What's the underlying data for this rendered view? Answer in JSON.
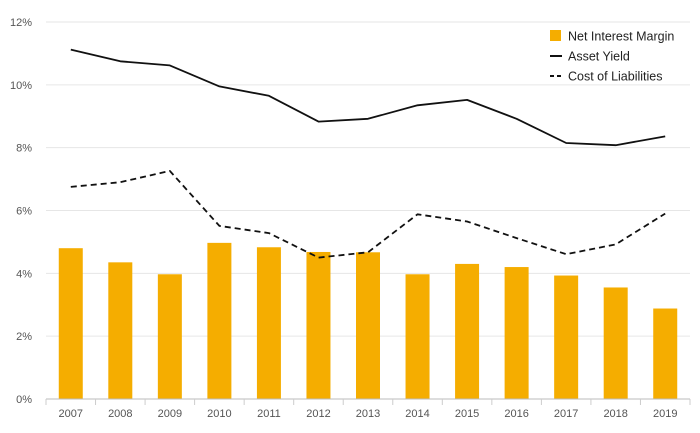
{
  "chart_data": {
    "type": "bar",
    "title": "",
    "xlabel": "",
    "ylabel": "",
    "categories": [
      "2007",
      "2008",
      "2009",
      "2010",
      "2011",
      "2012",
      "2013",
      "2014",
      "2015",
      "2016",
      "2017",
      "2018",
      "2019"
    ],
    "ylim": [
      0,
      12
    ],
    "yticks": [
      0,
      2,
      4,
      6,
      8,
      10,
      12
    ],
    "ytick_labels": [
      "0%",
      "2%",
      "4%",
      "6%",
      "8%",
      "10%",
      "12%"
    ],
    "grid": true,
    "legend_position": "top-right",
    "series": [
      {
        "name": "Net Interest Margin",
        "kind": "bar",
        "color": "#F5AD00",
        "values": [
          4.8,
          4.35,
          3.97,
          4.97,
          4.83,
          4.68,
          4.67,
          3.97,
          4.3,
          4.2,
          3.93,
          3.55,
          2.88
        ]
      },
      {
        "name": "Asset Yield",
        "kind": "line",
        "style": "solid",
        "color": "#111111",
        "values": [
          11.12,
          10.75,
          10.62,
          9.95,
          9.65,
          8.83,
          8.92,
          9.35,
          9.52,
          8.92,
          8.15,
          8.08,
          8.36
        ]
      },
      {
        "name": "Cost of Liabilities",
        "kind": "line",
        "style": "dashed",
        "color": "#111111",
        "values": [
          6.75,
          6.9,
          7.26,
          5.51,
          5.28,
          4.5,
          4.67,
          5.88,
          5.65,
          5.12,
          4.61,
          4.92,
          5.9
        ]
      }
    ]
  }
}
